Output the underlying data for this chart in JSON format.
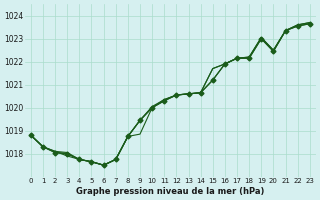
{
  "title": "Graphe pression niveau de la mer (hPa)",
  "background_color": "#d6f0f0",
  "plot_bg_color": "#d6f0f0",
  "grid_color": "#aaddcc",
  "line_color": "#1a5c1a",
  "x_labels": [
    "0",
    "1",
    "2",
    "3",
    "4",
    "5",
    "6",
    "7",
    "8",
    "9",
    "10",
    "11",
    "12",
    "13",
    "14",
    "15",
    "16",
    "17",
    "18",
    "19",
    "20",
    "21",
    "22",
    "23"
  ],
  "hours": [
    0,
    1,
    2,
    3,
    4,
    5,
    6,
    7,
    8,
    9,
    10,
    11,
    12,
    13,
    14,
    15,
    16,
    17,
    18,
    19,
    20,
    21,
    22,
    23
  ],
  "line1": [
    1018.8,
    1018.3,
    1018.1,
    1017.9,
    1017.75,
    1017.65,
    1017.5,
    1017.75,
    1018.75,
    1018.85,
    1020.0,
    1020.35,
    1020.55,
    1020.6,
    1020.65,
    1021.7,
    1021.9,
    1022.15,
    1022.2,
    1023.05,
    1022.5,
    1023.35,
    1023.6,
    1023.7
  ],
  "line2": [
    1018.8,
    1018.3,
    1018.1,
    1018.05,
    1017.75,
    1017.65,
    1017.5,
    1017.75,
    1018.75,
    1019.45,
    1020.05,
    1020.35,
    1020.55,
    1020.6,
    1020.65,
    1021.7,
    1021.9,
    1022.15,
    1022.2,
    1023.05,
    1022.5,
    1023.35,
    1023.6,
    1023.7
  ],
  "line3": [
    1018.8,
    1018.3,
    1018.05,
    1018.0,
    1017.75,
    1017.65,
    1017.5,
    1017.75,
    1018.75,
    1019.45,
    1020.0,
    1020.3,
    1020.55,
    1020.6,
    1020.65,
    1021.2,
    1021.9,
    1022.15,
    1022.15,
    1023.0,
    1022.45,
    1023.35,
    1023.55,
    1023.65
  ],
  "line4": [
    1018.8,
    1018.3,
    1018.05,
    1018.0,
    1017.75,
    1017.65,
    1017.5,
    1017.75,
    1018.75,
    1019.45,
    1020.0,
    1020.3,
    1020.55,
    1020.6,
    1020.65,
    1021.2,
    1021.9,
    1022.15,
    1022.15,
    1023.0,
    1022.45,
    1023.35,
    1023.55,
    1023.65
  ],
  "ylim_min": 1017.0,
  "ylim_max": 1024.5,
  "yticks": [
    1018,
    1019,
    1020,
    1021,
    1022,
    1023,
    1024
  ]
}
